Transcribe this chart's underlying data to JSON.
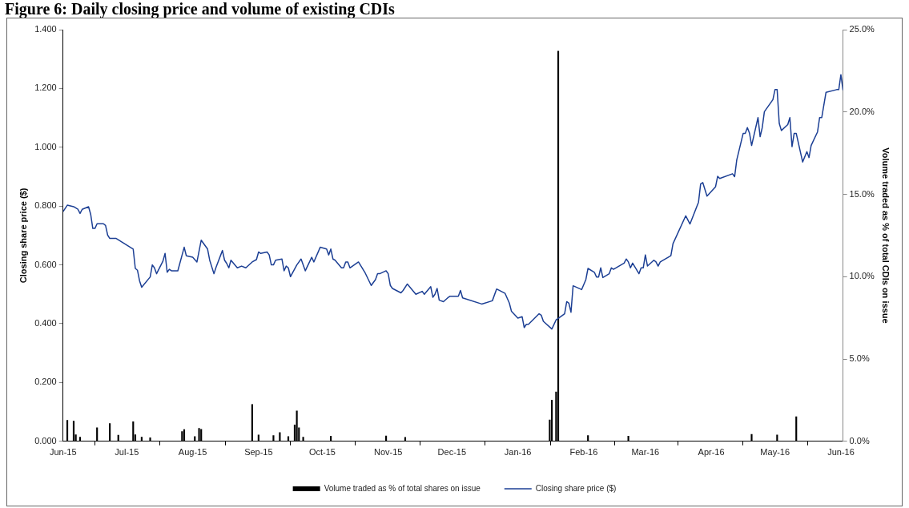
{
  "chart_data": {
    "type": "line",
    "title": "Figure 6: Daily closing price and volume of existing CDIs",
    "ylabel": "Closing share price ($)",
    "y2label": "Volume traded as % of total CDIs on issue",
    "xlim": [
      "2015-06-01",
      "2016-06-02"
    ],
    "xticks": [
      {
        "value": "2015-06-01",
        "label": "Jun-15"
      },
      {
        "value": "2015-07-01",
        "label": "Jul-15"
      },
      {
        "value": "2015-08-01",
        "label": "Aug-15"
      },
      {
        "value": "2015-09-01",
        "label": "Sep-15"
      },
      {
        "value": "2015-10-01",
        "label": "Oct-15"
      },
      {
        "value": "2015-11-01",
        "label": "Nov-15"
      },
      {
        "value": "2015-12-01",
        "label": "Dec-15"
      },
      {
        "value": "2016-01-01",
        "label": "Jan-16"
      },
      {
        "value": "2016-02-01",
        "label": "Feb-16"
      },
      {
        "value": "2016-03-01",
        "label": "Mar-16"
      },
      {
        "value": "2016-04-01",
        "label": "Apr-16"
      },
      {
        "value": "2016-05-01",
        "label": "May-16"
      },
      {
        "value": "2016-06-01",
        "label": "Jun-16"
      }
    ],
    "ylim": [
      0,
      1.4
    ],
    "yticks": [
      {
        "value": 0,
        "label": "0.000"
      },
      {
        "value": 0.2,
        "label": "0.200"
      },
      {
        "value": 0.4,
        "label": "0.400"
      },
      {
        "value": 0.6,
        "label": "0.600"
      },
      {
        "value": 0.8,
        "label": "0.800"
      },
      {
        "value": 1,
        "label": "1.000"
      },
      {
        "value": 1.2,
        "label": "1.200"
      },
      {
        "value": 1.4,
        "label": "1.400"
      }
    ],
    "y2lim": [
      0,
      25
    ],
    "y2ticks": [
      {
        "value": 0,
        "label": "0.0%"
      },
      {
        "value": 5,
        "label": "5.0%"
      },
      {
        "value": 10,
        "label": "10.0%"
      },
      {
        "value": 15,
        "label": "15.0%"
      },
      {
        "value": 20,
        "label": "20.0%"
      },
      {
        "value": 25,
        "label": "25.0%"
      }
    ],
    "grid": false,
    "legend": "bottom",
    "marker": "none",
    "line_style": "solid",
    "series": [
      {
        "type": "bar",
        "axis": "y2",
        "name": "Volume traded as % of total shares on issue",
        "color": "#000000",
        "x": [
          "2015-06-03",
          "2015-06-06",
          "2015-06-07",
          "2015-06-09",
          "2015-06-17",
          "2015-06-23",
          "2015-06-27",
          "2015-07-04",
          "2015-07-05",
          "2015-07-08",
          "2015-07-12",
          "2015-07-27",
          "2015-07-28",
          "2015-08-02",
          "2015-08-04",
          "2015-08-05",
          "2015-08-29",
          "2015-09-01",
          "2015-09-08",
          "2015-09-11",
          "2015-09-15",
          "2015-09-18",
          "2015-09-19",
          "2015-09-20",
          "2015-09-22",
          "2015-10-05",
          "2015-10-31",
          "2015-11-09",
          "2016-01-16",
          "2016-01-17",
          "2016-01-19",
          "2016-01-20",
          "2016-02-03",
          "2016-02-22",
          "2016-04-20",
          "2016-05-02",
          "2016-05-11"
        ],
        "values": [
          1.28,
          1.23,
          0.4,
          0.26,
          0.83,
          1.08,
          0.37,
          1.19,
          0.4,
          0.26,
          0.22,
          0.59,
          0.72,
          0.29,
          0.79,
          0.73,
          2.24,
          0.39,
          0.35,
          0.53,
          0.29,
          1.0,
          1.85,
          0.83,
          0.26,
          0.31,
          0.33,
          0.24,
          1.3,
          2.5,
          3.0,
          23.7,
          0.35,
          0.31,
          0.42,
          0.39,
          1.5
        ]
      },
      {
        "axis": "y",
        "name": "Closing share price ($)",
        "color": "#1c3f94",
        "x": [
          "2015-06-01",
          "2015-06-03",
          "2015-06-06",
          "2015-06-08",
          "2015-06-09",
          "2015-06-10",
          "2015-06-13",
          "2015-06-14",
          "2015-06-15",
          "2015-06-16",
          "2015-06-17",
          "2015-06-20",
          "2015-06-21",
          "2015-06-22",
          "2015-06-23",
          "2015-06-26",
          "2015-07-04",
          "2015-07-05",
          "2015-07-06",
          "2015-07-07",
          "2015-07-08",
          "2015-07-12",
          "2015-07-13",
          "2015-07-14",
          "2015-07-15",
          "2015-07-18",
          "2015-07-19",
          "2015-07-20",
          "2015-07-21",
          "2015-07-22",
          "2015-07-25",
          "2015-07-28",
          "2015-07-29",
          "2015-08-01",
          "2015-08-03",
          "2015-08-05",
          "2015-08-08",
          "2015-08-09",
          "2015-08-11",
          "2015-08-12",
          "2015-08-15",
          "2015-08-16",
          "2015-08-17",
          "2015-08-18",
          "2015-08-19",
          "2015-08-22",
          "2015-08-24",
          "2015-08-26",
          "2015-08-29",
          "2015-08-31",
          "2015-09-01",
          "2015-09-02",
          "2015-09-05",
          "2015-09-06",
          "2015-09-07",
          "2015-09-08",
          "2015-09-09",
          "2015-09-12",
          "2015-09-13",
          "2015-09-14",
          "2015-09-15",
          "2015-09-16",
          "2015-09-19",
          "2015-09-21",
          "2015-09-23",
          "2015-09-26",
          "2015-09-27",
          "2015-09-30",
          "2015-10-03",
          "2015-10-04",
          "2015-10-05",
          "2015-10-06",
          "2015-10-07",
          "2015-10-10",
          "2015-10-11",
          "2015-10-12",
          "2015-10-13",
          "2015-10-14",
          "2015-10-18",
          "2015-10-21",
          "2015-10-24",
          "2015-10-26",
          "2015-10-27",
          "2015-10-28",
          "2015-10-31",
          "2015-11-01",
          "2015-11-02",
          "2015-11-03",
          "2015-11-07",
          "2015-11-08",
          "2015-11-10",
          "2015-11-14",
          "2015-11-17",
          "2015-11-18",
          "2015-11-21",
          "2015-11-22",
          "2015-11-23",
          "2015-11-24",
          "2015-11-25",
          "2015-11-27",
          "2015-11-29",
          "2015-11-30",
          "2015-12-01",
          "2015-12-04",
          "2015-12-05",
          "2015-12-06",
          "2015-12-15",
          "2015-12-20",
          "2015-12-22",
          "2015-12-26",
          "2015-12-28",
          "2015-12-29",
          "2016-01-01",
          "2016-01-03",
          "2016-01-04",
          "2016-01-05",
          "2016-01-06",
          "2016-01-11",
          "2016-01-12",
          "2016-01-13",
          "2016-01-17",
          "2016-01-19",
          "2016-01-20",
          "2016-01-23",
          "2016-01-24",
          "2016-01-25",
          "2016-01-26",
          "2016-01-27",
          "2016-01-31",
          "2016-02-02",
          "2016-02-03",
          "2016-02-06",
          "2016-02-07",
          "2016-02-08",
          "2016-02-09",
          "2016-02-10",
          "2016-02-13",
          "2016-02-14",
          "2016-02-15",
          "2016-02-20",
          "2016-02-21",
          "2016-02-22",
          "2016-02-23",
          "2016-02-24",
          "2016-02-27",
          "2016-02-28",
          "2016-02-29",
          "2016-03-01",
          "2016-03-02",
          "2016-03-05",
          "2016-03-06",
          "2016-03-07",
          "2016-03-08",
          "2016-03-13",
          "2016-03-14",
          "2016-03-20",
          "2016-03-22",
          "2016-03-26",
          "2016-03-27",
          "2016-03-28",
          "2016-03-30",
          "2016-04-03",
          "2016-04-04",
          "2016-04-05",
          "2016-04-11",
          "2016-04-12",
          "2016-04-13",
          "2016-04-16",
          "2016-04-17",
          "2016-04-18",
          "2016-04-19",
          "2016-04-20",
          "2016-04-23",
          "2016-04-24",
          "2016-04-25",
          "2016-04-26",
          "2016-04-30",
          "2016-05-01",
          "2016-05-02",
          "2016-05-03",
          "2016-05-04",
          "2016-05-07",
          "2016-05-08",
          "2016-05-09",
          "2016-05-10",
          "2016-05-11",
          "2016-05-14",
          "2016-05-16",
          "2016-05-17",
          "2016-05-18",
          "2016-05-21",
          "2016-05-22",
          "2016-05-23",
          "2016-05-25",
          "2016-05-30",
          "2016-05-31",
          "2016-06-01",
          "2016-06-02"
        ],
        "values": [
          0.781,
          0.803,
          0.798,
          0.789,
          0.775,
          0.789,
          0.798,
          0.772,
          0.724,
          0.724,
          0.74,
          0.74,
          0.734,
          0.701,
          0.69,
          0.69,
          0.654,
          0.588,
          0.582,
          0.546,
          0.524,
          0.559,
          0.6,
          0.59,
          0.57,
          0.613,
          0.639,
          0.575,
          0.585,
          0.58,
          0.58,
          0.66,
          0.631,
          0.626,
          0.61,
          0.684,
          0.654,
          0.616,
          0.57,
          0.592,
          0.649,
          0.616,
          0.605,
          0.59,
          0.616,
          0.59,
          0.596,
          0.59,
          0.61,
          0.618,
          0.644,
          0.639,
          0.644,
          0.634,
          0.6,
          0.6,
          0.616,
          0.62,
          0.58,
          0.596,
          0.59,
          0.56,
          0.6,
          0.62,
          0.58,
          0.626,
          0.61,
          0.66,
          0.654,
          0.634,
          0.654,
          0.62,
          0.616,
          0.59,
          0.59,
          0.61,
          0.61,
          0.59,
          0.61,
          0.575,
          0.53,
          0.55,
          0.57,
          0.57,
          0.58,
          0.57,
          0.53,
          0.52,
          0.505,
          0.513,
          0.535,
          0.5,
          0.51,
          0.5,
          0.526,
          0.49,
          0.5,
          0.52,
          0.48,
          0.475,
          0.488,
          0.493,
          0.493,
          0.493,
          0.513,
          0.488,
          0.467,
          0.478,
          0.518,
          0.503,
          0.47,
          0.442,
          0.419,
          0.424,
          0.387,
          0.398,
          0.398,
          0.434,
          0.429,
          0.408,
          0.382,
          0.413,
          0.418,
          0.434,
          0.475,
          0.47,
          0.439,
          0.529,
          0.516,
          0.55,
          0.588,
          0.575,
          0.559,
          0.559,
          0.59,
          0.557,
          0.57,
          0.59,
          0.585,
          0.606,
          0.62,
          0.61,
          0.59,
          0.606,
          0.57,
          0.59,
          0.59,
          0.634,
          0.596,
          0.616,
          0.61,
          0.596,
          0.61,
          0.631,
          0.672,
          0.767,
          0.739,
          0.813,
          0.875,
          0.88,
          0.834,
          0.865,
          0.901,
          0.894,
          0.91,
          0.9,
          0.957,
          1.047,
          1.047,
          1.067,
          1.048,
          1.006,
          1.101,
          1.036,
          1.067,
          1.121,
          1.162,
          1.196,
          1.196,
          1.081,
          1.057,
          1.077,
          1.101,
          1.002,
          1.047,
          1.047,
          0.95,
          0.985,
          0.965,
          1.006,
          1.052,
          1.101,
          1.101,
          1.187,
          1.196,
          1.196,
          1.247,
          1.194
        ]
      }
    ]
  }
}
